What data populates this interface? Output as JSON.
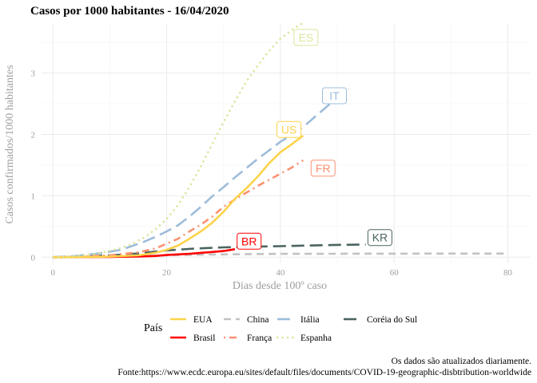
{
  "chart_data": {
    "type": "line",
    "title": "Casos por 1000 habitantes -  16/04/2020",
    "xlabel": "Dias desde 100º caso",
    "ylabel": "Casos confirmados/1000 habitantes",
    "xlim": [
      -2,
      84
    ],
    "ylim": [
      -0.1,
      3.8
    ],
    "xticks": [
      "0",
      "20",
      "40",
      "60",
      "80"
    ],
    "yticks": [
      "0",
      "1",
      "2",
      "3"
    ],
    "grid": true,
    "legend": {
      "title": "País",
      "placement": "bottom",
      "entries": [
        "EUA",
        "China",
        "Itália",
        "Coréia do Sul",
        "Brasil",
        "França",
        "Espanha"
      ]
    },
    "caption": [
      "Os dados são atualizados diariamente.",
      "Fonte:https://www.ecdc.europa.eu/sites/default/files/documents/COVID-19-geographic-disbtribution-worldwide"
    ],
    "series": [
      {
        "name": "Coréia do Sul",
        "label": "KR",
        "color": "#4a6461",
        "dash": "longdash",
        "label_x": 57.5,
        "label_y": 0.32,
        "x": [
          0,
          5,
          10,
          15,
          20,
          25,
          30,
          35,
          40,
          45,
          50,
          55
        ],
        "y": [
          0.0,
          0.01,
          0.03,
          0.06,
          0.11,
          0.14,
          0.16,
          0.17,
          0.18,
          0.19,
          0.2,
          0.205
        ]
      },
      {
        "name": "China",
        "label": null,
        "color": "#c2c2c2",
        "dash": "dash",
        "label_x": null,
        "label_y": null,
        "x": [
          0,
          5,
          10,
          15,
          20,
          25,
          30,
          40,
          50,
          60,
          70,
          80
        ],
        "y": [
          0.0,
          0.003,
          0.008,
          0.018,
          0.03,
          0.04,
          0.045,
          0.055,
          0.056,
          0.057,
          0.058,
          0.058
        ]
      },
      {
        "name": "Brasil",
        "label": "BR",
        "color": "#ff0000",
        "dash": "solid",
        "label_x": 34.5,
        "label_y": 0.26,
        "x": [
          0,
          5,
          10,
          15,
          18,
          20,
          22,
          24,
          26,
          28,
          30,
          32
        ],
        "y": [
          0.0,
          0.002,
          0.005,
          0.01,
          0.02,
          0.035,
          0.045,
          0.055,
          0.07,
          0.085,
          0.1,
          0.13
        ]
      },
      {
        "name": "França",
        "label": "FR",
        "color": "#fc9272",
        "dash": "dotdash",
        "label_x": 47.5,
        "label_y": 1.45,
        "x": [
          0,
          5,
          10,
          15,
          18,
          20,
          22,
          24,
          26,
          28,
          30,
          32,
          34,
          36,
          38,
          40,
          42,
          44
        ],
        "y": [
          0.0,
          0.01,
          0.03,
          0.08,
          0.14,
          0.22,
          0.3,
          0.42,
          0.53,
          0.66,
          0.82,
          0.94,
          1.05,
          1.16,
          1.26,
          1.36,
          1.46,
          1.58
        ]
      },
      {
        "name": "Itália",
        "label": "IT",
        "color": "#9ebcda",
        "dash": "longdash",
        "label_x": 49.5,
        "label_y": 2.63,
        "x": [
          0,
          4,
          8,
          12,
          16,
          18,
          20,
          22,
          24,
          26,
          28,
          30,
          32,
          34,
          36,
          38,
          40,
          42,
          44,
          46,
          48,
          50,
          52
        ],
        "y": [
          0.0,
          0.02,
          0.06,
          0.12,
          0.25,
          0.33,
          0.42,
          0.52,
          0.66,
          0.82,
          0.99,
          1.14,
          1.3,
          1.45,
          1.6,
          1.74,
          1.88,
          2.0,
          2.12,
          2.28,
          2.44,
          2.6,
          2.74
        ]
      },
      {
        "name": "EUA",
        "label": "US",
        "color": "#fdd34b",
        "dash": "solid",
        "label_x": 41.5,
        "label_y": 2.08,
        "x": [
          0,
          5,
          10,
          15,
          18,
          20,
          22,
          24,
          26,
          28,
          30,
          32,
          34,
          36,
          38,
          40,
          42,
          44
        ],
        "y": [
          0.0,
          0.003,
          0.01,
          0.03,
          0.07,
          0.12,
          0.19,
          0.3,
          0.42,
          0.56,
          0.74,
          0.95,
          1.12,
          1.31,
          1.53,
          1.71,
          1.84,
          1.98
        ]
      },
      {
        "name": "Espanha",
        "label": "ES",
        "color": "#d9e59a",
        "dash": "dot",
        "label_x": 44.5,
        "label_y": 3.58,
        "x": [
          0,
          4,
          8,
          12,
          14,
          16,
          18,
          20,
          22,
          24,
          26,
          28,
          30,
          32,
          34,
          36,
          38,
          40,
          42,
          44
        ],
        "y": [
          0.0,
          0.02,
          0.06,
          0.15,
          0.22,
          0.32,
          0.45,
          0.62,
          0.85,
          1.14,
          1.48,
          1.84,
          2.2,
          2.54,
          2.86,
          3.12,
          3.36,
          3.56,
          3.7,
          3.82
        ]
      }
    ]
  }
}
